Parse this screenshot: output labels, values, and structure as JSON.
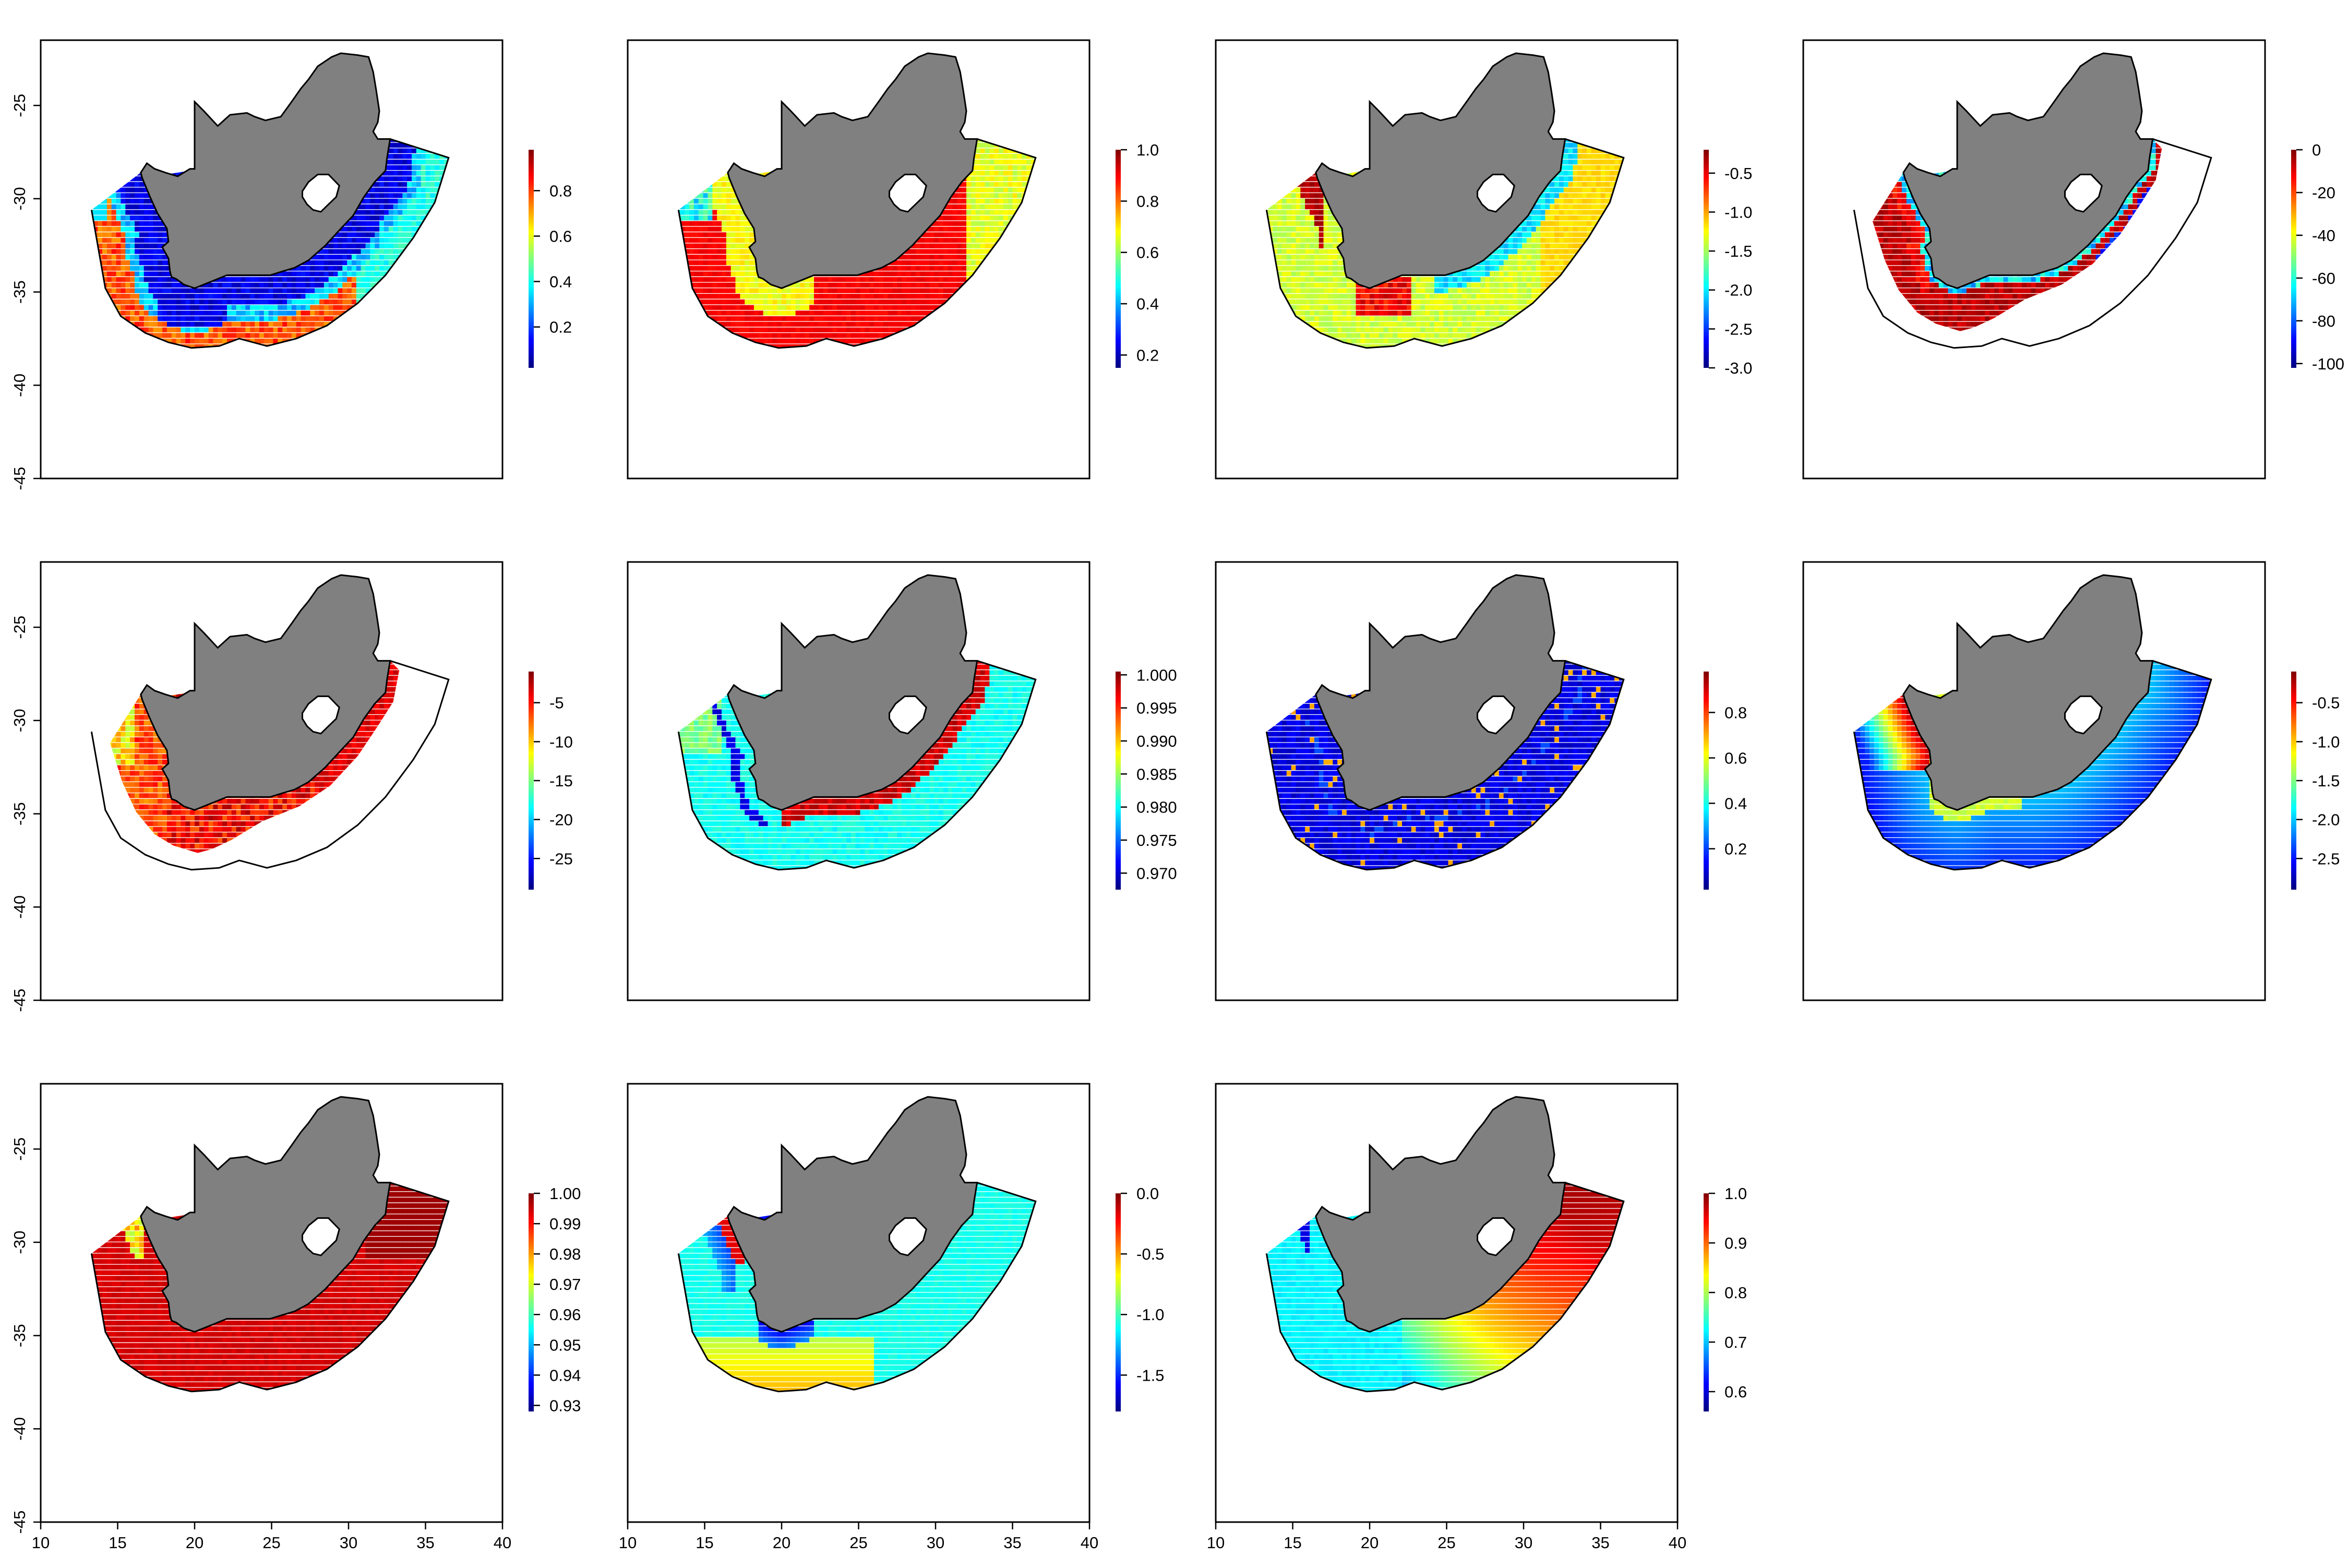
{
  "figure": {
    "panel_count": 11,
    "layout": "3 rows x 4 columns (last cell empty)",
    "land_color": "#808080",
    "outline_color": "#000000",
    "colormap": [
      "#00007f",
      "#0000ff",
      "#007fff",
      "#00ffff",
      "#7fff7f",
      "#ffff00",
      "#ff7f00",
      "#ff0000",
      "#7f0000"
    ],
    "x_axis": {
      "ticks": [
        "10",
        "15",
        "20",
        "25",
        "30",
        "35",
        "40"
      ],
      "range": [
        10,
        40
      ],
      "shown_on": "bottom row"
    },
    "y_axis": {
      "ticks": [
        "-25",
        "-30",
        "-35",
        "-40",
        "-45"
      ],
      "range": [
        -45,
        -21.5
      ],
      "shown_on": "left column"
    },
    "panels": [
      {
        "pattern": "inshore_low_offshore_high",
        "extent": "full",
        "legend": {
          "ticks": [
            "0.8",
            "0.6",
            "0.4",
            "0.2"
          ],
          "range": [
            0.02,
            0.98
          ],
          "ticks_top_value": 0.8
        }
      },
      {
        "pattern": "mostly_high",
        "extent": "full",
        "legend": {
          "ticks": [
            "1.0",
            "0.8",
            "0.6",
            "0.4",
            "0.2"
          ],
          "range": [
            0.15,
            1.0
          ]
        }
      },
      {
        "pattern": "mid_yellow_red_west",
        "extent": "full",
        "legend": {
          "ticks": [
            "-0.5",
            "-1.0",
            "-1.5",
            "-2.0",
            "-2.5",
            "-3.0"
          ],
          "range": [
            -3.0,
            -0.2
          ]
        }
      },
      {
        "pattern": "shelf_red_band",
        "extent": "shelf",
        "legend": {
          "ticks": [
            "0",
            "-20",
            "-40",
            "-60",
            "-80",
            "-100"
          ],
          "range": [
            -102,
            0
          ]
        }
      },
      {
        "pattern": "shelf_mixed",
        "extent": "shelf",
        "legend": {
          "ticks": [
            "-5",
            "-10",
            "-15",
            "-20",
            "-25"
          ],
          "range": [
            -29,
            -1
          ]
        }
      },
      {
        "pattern": "cyan_with_red_coast",
        "extent": "full",
        "legend": {
          "ticks": [
            "1.000",
            "0.995",
            "0.990",
            "0.985",
            "0.980",
            "0.975",
            "0.970"
          ],
          "range": [
            0.9675,
            1.0005
          ]
        }
      },
      {
        "pattern": "dark_blue",
        "extent": "full",
        "legend": {
          "ticks": [
            "0.8",
            "0.6",
            "0.4",
            "0.2"
          ],
          "range": [
            0.02,
            0.98
          ]
        }
      },
      {
        "pattern": "blue_gradient_west_hot",
        "extent": "full",
        "legend": {
          "ticks": [
            "-0.5",
            "-1.0",
            "-1.5",
            "-2.0",
            "-2.5"
          ],
          "range": [
            -2.9,
            -0.1
          ]
        }
      },
      {
        "pattern": "all_dark_red",
        "extent": "full",
        "legend": {
          "ticks": [
            "1.00",
            "0.99",
            "0.98",
            "0.97",
            "0.96",
            "0.95",
            "0.94",
            "0.93"
          ],
          "range": [
            0.928,
            1.0
          ]
        }
      },
      {
        "pattern": "cyan_yellow_south",
        "extent": "full",
        "legend": {
          "ticks": [
            "0.0",
            "-0.5",
            "-1.0",
            "-1.5"
          ],
          "range": [
            -1.8,
            0.0
          ]
        }
      },
      {
        "pattern": "cyan_to_red_east",
        "extent": "full",
        "legend": {
          "ticks": [
            "1.0",
            "0.9",
            "0.8",
            "0.7",
            "0.6"
          ],
          "range": [
            0.56,
            1.0
          ]
        }
      }
    ]
  }
}
